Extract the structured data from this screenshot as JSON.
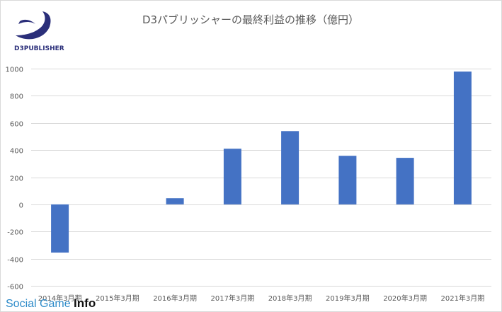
{
  "logo": {
    "text": "D3PUBLISHER"
  },
  "watermark": {
    "part1": "Social Game ",
    "part2": "Info"
  },
  "chart_data": {
    "type": "bar",
    "title": "D3パブリッシャーの最終利益の推移（億円）",
    "xlabel": "",
    "ylabel": "",
    "categories": [
      "2014年3月期",
      "2015年3月期",
      "2016年3月期",
      "2017年3月期",
      "2018年3月期",
      "2019年3月期",
      "2020年3月期",
      "2021年3月期"
    ],
    "values": [
      -355,
      0,
      45,
      410,
      540,
      358,
      343,
      978
    ],
    "ylim": [
      -600,
      1000
    ],
    "yticks": [
      1000,
      800,
      600,
      400,
      200,
      0,
      -200,
      -400,
      -600
    ],
    "ytick_labels": [
      "1000",
      "800",
      "600",
      "400",
      "200",
      "0",
      "-200",
      "-400",
      "-600"
    ],
    "grid": true,
    "legend": "none",
    "bar_color": "#4472c4"
  }
}
